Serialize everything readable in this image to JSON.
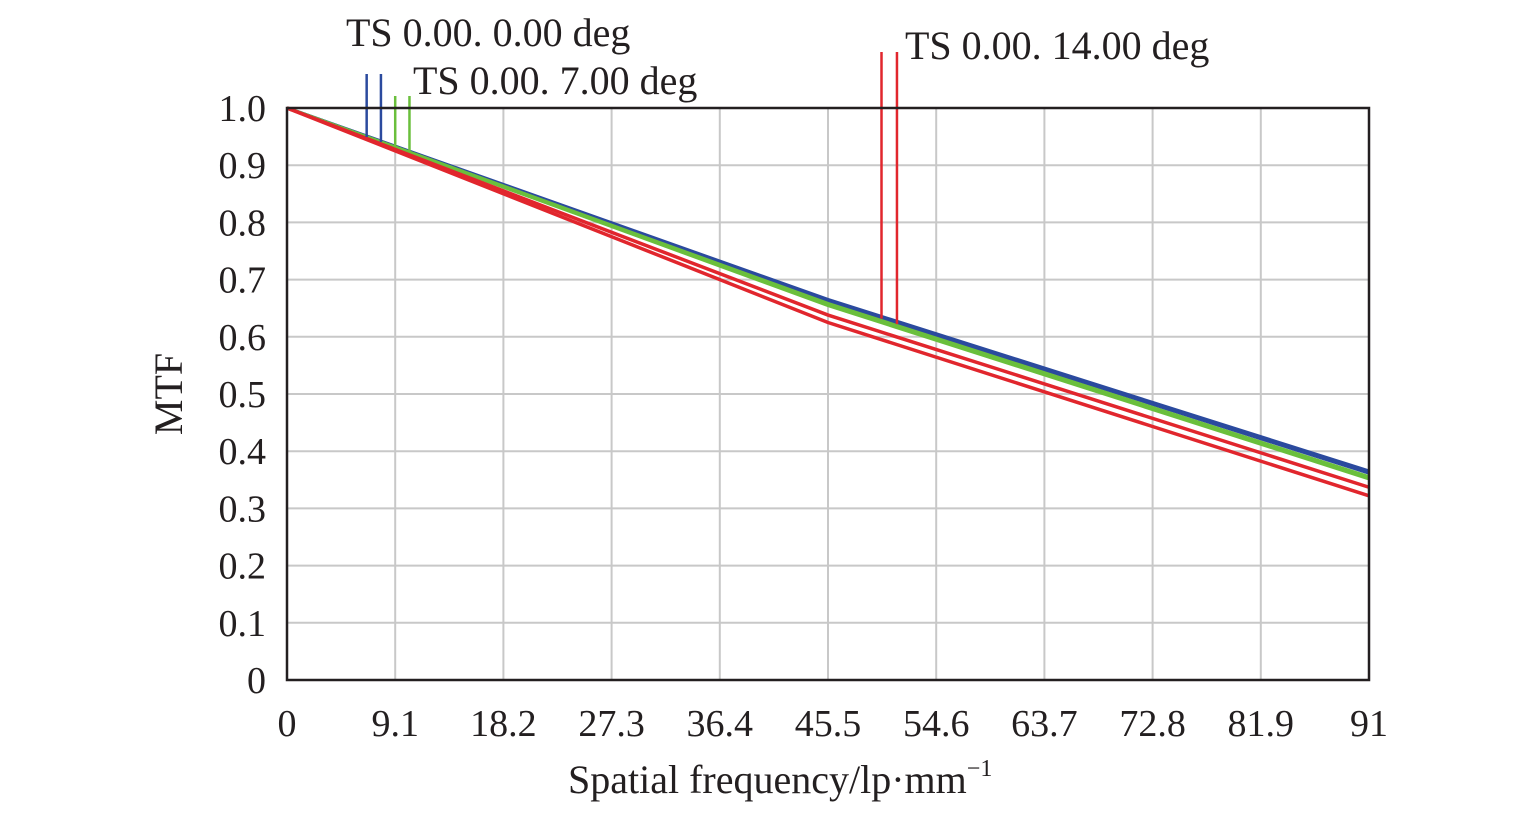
{
  "chart_data": {
    "type": "line",
    "xlabel": "Spatial frequency/lp·mm",
    "xlabel_superscript": "−1",
    "ylabel": "MTF",
    "xlim": [
      0,
      91
    ],
    "ylim": [
      0,
      1.0
    ],
    "grid": true,
    "x_ticks": [
      "0",
      "9.1",
      "18.2",
      "27.3",
      "36.4",
      "45.5",
      "54.6",
      "63.7",
      "72.8",
      "81.9",
      "91"
    ],
    "y_ticks": [
      "0",
      "0.1",
      "0.2",
      "0.3",
      "0.4",
      "0.5",
      "0.6",
      "0.7",
      "0.8",
      "0.9",
      "1.0"
    ],
    "colors": {
      "field_0": "#2b4a9e",
      "field_7": "#6abf3c",
      "field_14": "#e1262d"
    },
    "series": [
      {
        "name": "TS 0.00. 0.00 deg",
        "color": "#2b4a9e",
        "x": [
          0,
          45.5,
          91
        ],
        "y": [
          1.0,
          0.665,
          0.365
        ]
      },
      {
        "name": "TS 0.00. 0.00 deg",
        "color": "#2b4a9e",
        "x": [
          0,
          45.5,
          91
        ],
        "y": [
          1.0,
          0.663,
          0.362
        ]
      },
      {
        "name": "TS 0.00. 7.00 deg",
        "color": "#6abf3c",
        "x": [
          0,
          45.5,
          91
        ],
        "y": [
          1.0,
          0.658,
          0.355
        ]
      },
      {
        "name": "TS 0.00. 7.00 deg",
        "color": "#6abf3c",
        "x": [
          0,
          45.5,
          91
        ],
        "y": [
          1.0,
          0.655,
          0.352
        ]
      },
      {
        "name": "TS 0.00. 14.00 deg",
        "color": "#e1262d",
        "x": [
          0,
          45.5,
          91
        ],
        "y": [
          1.0,
          0.638,
          0.337
        ]
      },
      {
        "name": "TS 0.00. 14.00 deg",
        "color": "#e1262d",
        "x": [
          0,
          45.5,
          91
        ],
        "y": [
          1.0,
          0.625,
          0.322
        ]
      }
    ],
    "legend": [
      {
        "text": "TS 0.00. 0.00 deg",
        "color": "#2b4a9e",
        "marker_x": [
          6.7,
          7.9
        ]
      },
      {
        "text": "TS 0.00. 7.00 deg",
        "color": "#6abf3c",
        "marker_x": [
          9.1,
          10.3
        ]
      },
      {
        "text": "TS 0.00. 14.00 deg",
        "color": "#e1262d",
        "marker_x": [
          50.0,
          51.3
        ]
      }
    ]
  }
}
